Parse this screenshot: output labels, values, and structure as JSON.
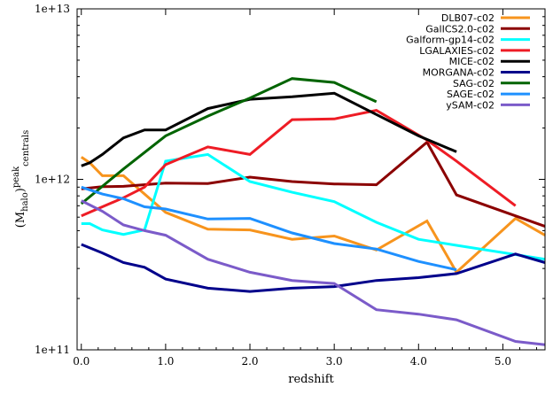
{
  "chart_data": {
    "type": "line",
    "xlabel": "redshift",
    "ylabel": "(M_halo)^peak_centrals",
    "ylabel_main": "(M",
    "ylabel_sub": "halo",
    "ylabel_close": ")",
    "ylabel_sup": "peak",
    "ylabel_sub2": "centrals",
    "x_scale": "linear",
    "y_scale": "log",
    "xlim": [
      -0.05,
      5.5
    ],
    "ylim": [
      100000000000.0,
      10000000000000.0
    ],
    "xticks": [
      0,
      1,
      2,
      3,
      4,
      5
    ],
    "xtick_labels": [
      "0.0",
      "1.0",
      "2.0",
      "3.0",
      "4.0",
      "5.0"
    ],
    "yticks": [
      100000000000.0,
      1000000000000.0,
      10000000000000.0
    ],
    "ytick_labels": [
      "1e+11",
      "1e+12",
      "1e+13"
    ],
    "grid": false,
    "legend_position": "top-right",
    "series": [
      {
        "name": "DLB07-c02",
        "color": "#f7941d",
        "x": [
          0.0,
          0.1,
          0.25,
          0.5,
          1.0,
          1.5,
          2.0,
          2.5,
          3.0,
          3.5,
          4.1,
          4.45,
          5.15,
          5.5
        ],
        "y": [
          1350000000000.0,
          1250000000000.0,
          1050000000000.0,
          1050000000000.0,
          640000000000.0,
          510000000000.0,
          505000000000.0,
          445000000000.0,
          465000000000.0,
          385000000000.0,
          570000000000.0,
          285000000000.0,
          590000000000.0,
          470000000000.0
        ]
      },
      {
        "name": "GalICS2.0-c02",
        "color": "#8b0000",
        "x": [
          0.0,
          0.1,
          0.25,
          0.5,
          1.0,
          1.5,
          2.0,
          2.5,
          3.0,
          3.5,
          4.1,
          4.45,
          5.5
        ],
        "y": [
          880000000000.0,
          890000000000.0,
          905000000000.0,
          910000000000.0,
          950000000000.0,
          945000000000.0,
          1030000000000.0,
          970000000000.0,
          940000000000.0,
          930000000000.0,
          1650000000000.0,
          810000000000.0,
          530000000000.0
        ]
      },
      {
        "name": "Galform-gp14-c02",
        "color": "#00ffff",
        "x": [
          0.0,
          0.1,
          0.25,
          0.5,
          0.75,
          1.0,
          1.5,
          2.0,
          2.5,
          3.0,
          3.5,
          4.0,
          4.45,
          5.5
        ],
        "y": [
          550000000000.0,
          550000000000.0,
          505000000000.0,
          475000000000.0,
          505000000000.0,
          1280000000000.0,
          1400000000000.0,
          970000000000.0,
          840000000000.0,
          740000000000.0,
          560000000000.0,
          445000000000.0,
          410000000000.0,
          340000000000.0
        ]
      },
      {
        "name": "LGALAXIES-c02",
        "color": "#ee1c25",
        "x": [
          0.0,
          0.25,
          0.5,
          0.75,
          1.0,
          1.5,
          2.0,
          2.5,
          3.0,
          3.5,
          4.1,
          4.45,
          5.15
        ],
        "y": [
          610000000000.0,
          690000000000.0,
          780000000000.0,
          900000000000.0,
          1220000000000.0,
          1550000000000.0,
          1400000000000.0,
          2240000000000.0,
          2260000000000.0,
          2540000000000.0,
          1700000000000.0,
          1280000000000.0,
          700000000000.0
        ]
      },
      {
        "name": "MICE-c02",
        "color": "#000000",
        "x": [
          0.0,
          0.1,
          0.25,
          0.5,
          0.75,
          1.0,
          1.5,
          2.0,
          2.5,
          3.0,
          3.5,
          4.0,
          4.45
        ],
        "y": [
          1200000000000.0,
          1250000000000.0,
          1400000000000.0,
          1750000000000.0,
          1950000000000.0,
          1950000000000.0,
          2600000000000.0,
          2950000000000.0,
          3050000000000.0,
          3200000000000.0,
          2400000000000.0,
          1800000000000.0,
          1450000000000.0
        ]
      },
      {
        "name": "MORGANA-c02",
        "color": "#00008b",
        "x": [
          0.0,
          0.25,
          0.5,
          0.75,
          1.0,
          1.5,
          2.0,
          2.5,
          3.0,
          3.5,
          4.0,
          4.45,
          5.15,
          5.5
        ],
        "y": [
          415000000000.0,
          370000000000.0,
          325000000000.0,
          305000000000.0,
          260000000000.0,
          230000000000.0,
          220000000000.0,
          230000000000.0,
          235000000000.0,
          255000000000.0,
          265000000000.0,
          280000000000.0,
          365000000000.0,
          325000000000.0
        ]
      },
      {
        "name": "SAG-c02",
        "color": "#006400",
        "x": [
          0.0,
          0.25,
          0.5,
          1.0,
          1.5,
          2.0,
          2.5,
          3.0,
          3.5
        ],
        "y": [
          720000000000.0,
          910000000000.0,
          1150000000000.0,
          1800000000000.0,
          2350000000000.0,
          3000000000000.0,
          3900000000000.0,
          3700000000000.0,
          2850000000000.0
        ]
      },
      {
        "name": "SAGE-c02",
        "color": "#1e90ff",
        "x": [
          0.0,
          0.25,
          0.5,
          0.75,
          1.0,
          1.5,
          2.0,
          2.5,
          3.0,
          3.5,
          4.0,
          4.45
        ],
        "y": [
          900000000000.0,
          820000000000.0,
          770000000000.0,
          690000000000.0,
          670000000000.0,
          585000000000.0,
          590000000000.0,
          485000000000.0,
          420000000000.0,
          390000000000.0,
          330000000000.0,
          295000000000.0
        ]
      },
      {
        "name": "ySAM-c02",
        "color": "#7b5bc9",
        "x": [
          0.0,
          0.25,
          0.5,
          0.75,
          1.0,
          1.5,
          2.0,
          2.5,
          3.0,
          3.5,
          4.0,
          4.45,
          5.15,
          5.5
        ],
        "y": [
          750000000000.0,
          650000000000.0,
          540000000000.0,
          500000000000.0,
          470000000000.0,
          340000000000.0,
          285000000000.0,
          255000000000.0,
          245000000000.0,
          172000000000.0,
          162000000000.0,
          150000000000.0,
          112000000000.0,
          107000000000.0
        ]
      }
    ]
  }
}
